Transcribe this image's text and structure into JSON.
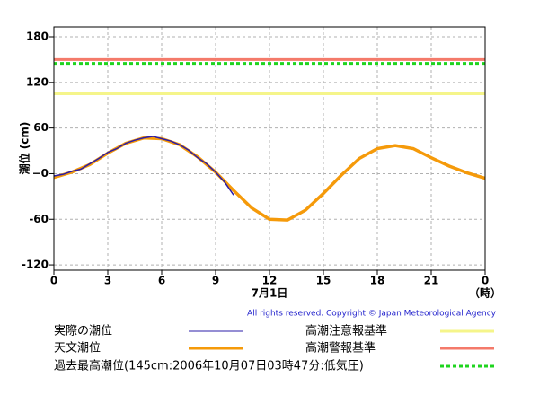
{
  "chart_data": {
    "type": "line",
    "ylabel": "潮位 (cm)",
    "xlabel": "7月1日",
    "xunit": "（時）",
    "copyright": "All rights reserved. Copyright © Japan Meteorological Agency",
    "xlim": [
      0,
      24
    ],
    "xticks": [
      0,
      3,
      6,
      9,
      12,
      15,
      18,
      21,
      {
        "value": 24,
        "label": "0"
      }
    ],
    "ylim": [
      -127,
      193
    ],
    "yticks": [
      180,
      120,
      60,
      {
        "value": 0,
        "label": "−0"
      },
      -60,
      -120
    ],
    "grid": true,
    "series": [
      {
        "name": "実際の潮位",
        "color": "#2b1ca8",
        "x": [
          0,
          0.5,
          1,
          1.5,
          2,
          2.5,
          3,
          3.5,
          4,
          4.5,
          5,
          5.5,
          6,
          6.5,
          7,
          7.5,
          8,
          8.5,
          9,
          9.5,
          10
        ],
        "values": [
          -3,
          -1,
          3,
          6,
          13,
          20,
          28,
          33,
          40,
          44,
          47,
          49,
          46,
          43,
          38,
          31,
          21,
          13,
          2,
          -11,
          -28
        ]
      },
      {
        "name": "天文潮位",
        "color": "#f59a0a",
        "x": [
          0,
          1,
          2,
          3,
          4,
          5,
          6,
          7,
          8,
          9,
          10,
          11,
          12,
          13,
          14,
          15,
          16,
          17,
          18,
          19,
          20,
          21,
          22,
          23,
          24
        ],
        "values": [
          -5,
          2,
          12,
          27,
          40,
          47,
          46,
          38,
          22,
          2,
          -22,
          -45,
          -60,
          -61,
          -48,
          -26,
          -2,
          20,
          33,
          37,
          33,
          21,
          10,
          1,
          -6
        ]
      }
    ],
    "reference_lines": [
      {
        "name": "高潮注意報基準",
        "value": 105,
        "color": "#f5f58a",
        "style": "solid"
      },
      {
        "name": "高潮警報基準",
        "value": 150,
        "color": "#f47a6a",
        "style": "solid"
      },
      {
        "name": "過去最高潮位(145cm:2006年10月07日03時47分:低気圧)",
        "value": 145,
        "color": "#1fd41f",
        "style": "dashed"
      }
    ]
  }
}
